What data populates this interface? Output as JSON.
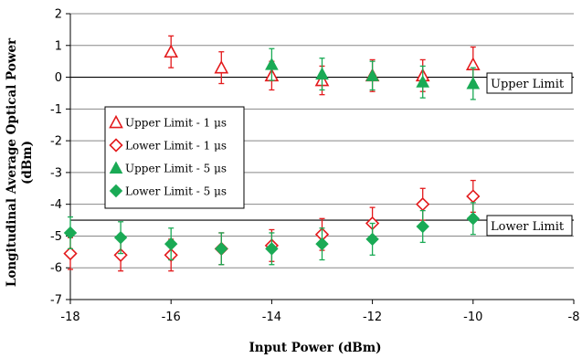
{
  "chart_data": {
    "type": "scatter",
    "xlabel": "Input Power (dBm)",
    "ylabel_lines": [
      "Longitudinal Average Optical Power",
      "(dBm)"
    ],
    "xlim": [
      -18,
      -8
    ],
    "ylim": [
      -7,
      2
    ],
    "x_ticks": [
      "-18",
      "-16",
      "-14",
      "-12",
      "-10",
      "-8"
    ],
    "y_ticks": [
      "2",
      "1",
      "0",
      "-1",
      "-2",
      "-3",
      "-4",
      "-5",
      "-6",
      "-7"
    ],
    "grid": "horizontal",
    "legend_position": "middle-left",
    "series": [
      {
        "name": "Upper Limit - 1 μs",
        "marker": "triangle-open",
        "color": "#e31a1c",
        "x": [
          -16,
          -15,
          -14,
          -13,
          -12,
          -11,
          -10
        ],
        "y": [
          0.8,
          0.3,
          0.05,
          -0.1,
          0.05,
          0.05,
          0.4
        ],
        "err": [
          0.5,
          0.5,
          0.45,
          0.45,
          0.5,
          0.5,
          0.55
        ]
      },
      {
        "name": "Lower Limit - 1 μs",
        "marker": "diamond-open",
        "color": "#e31a1c",
        "x": [
          -18,
          -17,
          -16,
          -15,
          -14,
          -13,
          -12,
          -11,
          -10
        ],
        "y": [
          -5.55,
          -5.6,
          -5.6,
          -5.4,
          -5.3,
          -4.95,
          -4.6,
          -4.0,
          -3.75
        ],
        "err": [
          0.5,
          0.5,
          0.5,
          0.5,
          0.5,
          0.5,
          0.5,
          0.5,
          0.5
        ]
      },
      {
        "name": "Upper Limit - 5 μs",
        "marker": "triangle-filled",
        "color": "#1aaa55",
        "x": [
          -14,
          -13,
          -12,
          -11,
          -10
        ],
        "y": [
          0.4,
          0.1,
          0.05,
          -0.15,
          -0.2
        ],
        "err": [
          0.5,
          0.5,
          0.45,
          0.5,
          0.5
        ]
      },
      {
        "name": "Lower Limit - 5 μs",
        "marker": "diamond-filled",
        "color": "#1aaa55",
        "x": [
          -18,
          -17,
          -16,
          -15,
          -14,
          -13,
          -12,
          -11,
          -10
        ],
        "y": [
          -4.9,
          -5.05,
          -5.25,
          -5.4,
          -5.4,
          -5.25,
          -5.1,
          -4.7,
          -4.45
        ],
        "err": [
          0.5,
          0.5,
          0.5,
          0.5,
          0.5,
          0.5,
          0.5,
          0.5,
          0.5
        ]
      }
    ],
    "reference_lines": [
      {
        "label": "Upper Limit",
        "y": 0
      },
      {
        "label": "Lower Limit",
        "y": -4.5
      }
    ]
  }
}
